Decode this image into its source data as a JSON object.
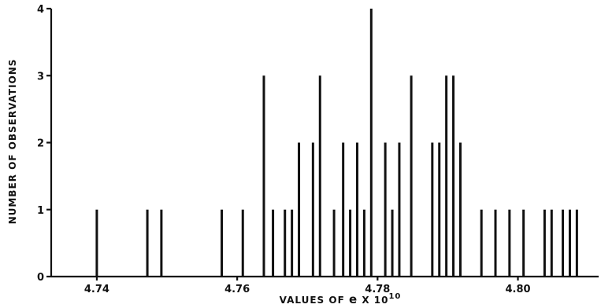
{
  "chart_data": {
    "type": "bar",
    "xlabel": "VALUES OF e X 10^10",
    "xlabel_parts": {
      "prefix": "VALUES OF ",
      "var": "e",
      "times": " X 10",
      "exponent": "10"
    },
    "ylabel": "NUMBER OF OBSERVATIONS",
    "xlim": [
      4.7335,
      4.8115
    ],
    "ylim": [
      0,
      4
    ],
    "x_ticks": [
      4.74,
      4.76,
      4.78,
      4.8
    ],
    "x_tick_labels": [
      "4.74",
      "4.76",
      "4.78",
      "4.80"
    ],
    "y_ticks": [
      0,
      1,
      2,
      3,
      4
    ],
    "y_tick_labels": [
      "0",
      "1",
      "2",
      "3",
      "4"
    ],
    "x": [
      4.74,
      4.7472,
      4.7492,
      4.7578,
      4.7608,
      4.7638,
      4.7651,
      4.7668,
      4.7678,
      4.7688,
      4.7708,
      4.7718,
      4.7738,
      4.7751,
      4.7761,
      4.7771,
      4.7781,
      4.7791,
      4.7811,
      4.7821,
      4.7831,
      4.7848,
      4.7878,
      4.7888,
      4.7898,
      4.7908,
      4.7918,
      4.7948,
      4.7968,
      4.7988,
      4.8008,
      4.8038,
      4.8048,
      4.8064,
      4.8074,
      4.8084
    ],
    "values": [
      1,
      1,
      1,
      1,
      1,
      3,
      1,
      1,
      1,
      2,
      2,
      3,
      1,
      2,
      1,
      2,
      1,
      4,
      2,
      1,
      2,
      3,
      2,
      2,
      3,
      3,
      2,
      1,
      1,
      1,
      1,
      1,
      1,
      1,
      1,
      1
    ],
    "grid": false
  }
}
